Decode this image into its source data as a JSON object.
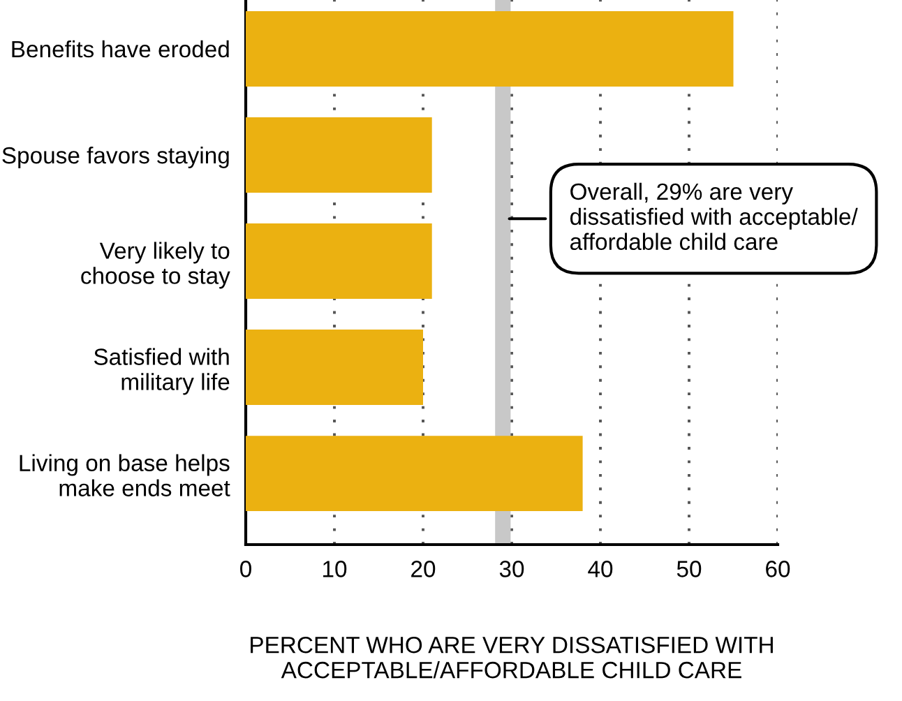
{
  "chart_data": {
    "type": "bar",
    "orientation": "horizontal",
    "categories": [
      "Benefits have eroded",
      "Spouse favors staying",
      "Very likely to\nchoose to stay",
      "Satisfied with\nmilitary life",
      "Living on base helps\nmake ends meet"
    ],
    "values": [
      55,
      21,
      21,
      20,
      38
    ],
    "color": "#ebb111",
    "xlabel": "PERCENT WHO ARE VERY DISSATISFIED WITH\nACCEPTABLE/AFFORDABLE CHILD CARE",
    "xlim": [
      0,
      60
    ],
    "xticks": [
      0,
      10,
      20,
      30,
      40,
      50,
      60
    ],
    "grid": "x",
    "ref_lines": [
      {
        "axis": "x",
        "value": 29,
        "color": "#c8c8c8",
        "label": "Overall, 29% are very\ndissatisfied with acceptable/\naffordable child care"
      }
    ]
  }
}
